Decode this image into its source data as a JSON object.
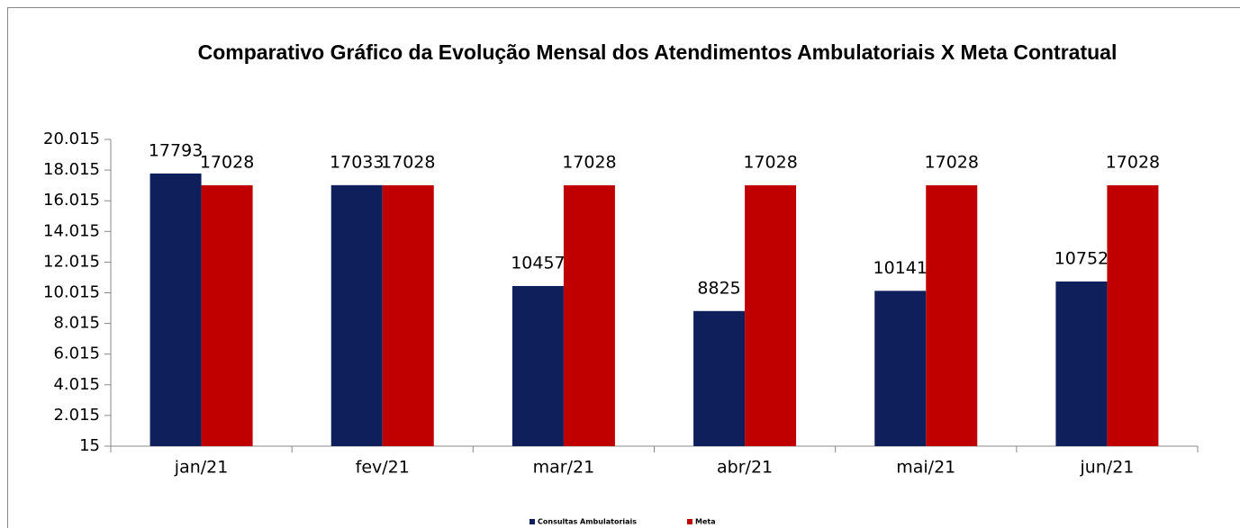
{
  "chart_data": {
    "type": "bar",
    "title": "Comparativo Gráfico da Evolução Mensal dos Atendimentos Ambulatoriais X Meta Contratual",
    "categories": [
      "jan/21",
      "fev/21",
      "mar/21",
      "abr/21",
      "mai/21",
      "jun/21"
    ],
    "series": [
      {
        "name": "Consultas Ambulatoriais",
        "color": "#0e1f5b",
        "values": [
          17793,
          17033,
          10457,
          8825,
          10141,
          10752
        ]
      },
      {
        "name": "Meta",
        "color": "#c00000",
        "values": [
          17028,
          17028,
          17028,
          17028,
          17028,
          17028
        ]
      }
    ],
    "ylim": [
      15,
      20015
    ],
    "yticks": [
      15,
      {
        "value": 2015,
        "label": "2.015"
      },
      {
        "value": 4015,
        "label": "4.015"
      },
      {
        "value": 6015,
        "label": "6.015"
      },
      {
        "value": 8015,
        "label": "8.015"
      },
      {
        "value": 10015,
        "label": "10.015"
      },
      {
        "value": 12015,
        "label": "12.015"
      },
      {
        "value": 14015,
        "label": "14.015"
      },
      {
        "value": 16015,
        "label": "16.015"
      },
      {
        "value": 18015,
        "label": "18.015"
      },
      {
        "value": 20015,
        "label": "20.015"
      }
    ],
    "grid": false,
    "legend": "bottom"
  }
}
